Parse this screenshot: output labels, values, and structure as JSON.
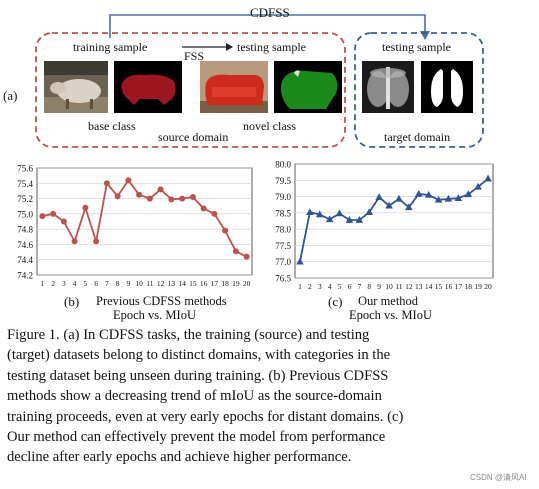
{
  "panel_a": {
    "label": "(a)",
    "cdfss_label": "CDFSS",
    "fss_label": "FSS",
    "training_sample": "training sample",
    "testing_sample_source": "testing sample",
    "testing_sample_target": "testing sample",
    "base_class": "base class",
    "novel_class": "novel class",
    "source_domain": "source domain",
    "target_domain": "target domain",
    "colors": {
      "source_box": "#c0504d",
      "target_box": "#3a5f9c",
      "arrow": "#4a6fb0"
    }
  },
  "chart_data": [
    {
      "type": "line",
      "panel_label": "(b)",
      "caption_line1": "Previous CDFSS methods",
      "caption_line2": "Epoch vs. MIoU",
      "x": [
        1,
        2,
        3,
        4,
        5,
        6,
        7,
        8,
        9,
        10,
        11,
        12,
        13,
        14,
        15,
        16,
        17,
        18,
        19,
        20
      ],
      "y": [
        74.97,
        75.0,
        74.9,
        74.64,
        75.08,
        74.64,
        75.4,
        75.23,
        75.44,
        75.25,
        75.2,
        75.32,
        75.19,
        75.2,
        75.22,
        75.07,
        75.0,
        74.78,
        74.51,
        74.44
      ],
      "yticks": [
        "74.2",
        "74.4",
        "74.6",
        "74.8",
        "75.0",
        "75.2",
        "75.4",
        "75.6"
      ],
      "ylim": [
        74.2,
        75.6
      ],
      "color": "#c0504d",
      "marker": "circle"
    },
    {
      "type": "line",
      "panel_label": "(c)",
      "caption_line1": "Our method",
      "caption_line2": "Epoch vs. MIoU",
      "x": [
        1,
        2,
        3,
        4,
        5,
        6,
        7,
        8,
        9,
        10,
        11,
        12,
        13,
        14,
        15,
        16,
        17,
        18,
        19,
        20
      ],
      "y": [
        77.0,
        78.52,
        78.45,
        78.3,
        78.48,
        78.28,
        78.28,
        78.52,
        78.98,
        78.72,
        78.93,
        78.67,
        79.08,
        79.05,
        78.9,
        78.93,
        78.95,
        79.07,
        79.3,
        79.55
      ],
      "yticks": [
        "76.5",
        "77.0",
        "77.5",
        "78.0",
        "78.5",
        "79.0",
        "79.5",
        "80.0"
      ],
      "ylim": [
        76.5,
        80.0
      ],
      "color": "#2e5597",
      "marker": "triangle"
    }
  ],
  "caption": {
    "lines": [
      "Figure 1.  (a) In CDFSS tasks, the training (source) and testing",
      "(target) datasets belong to distinct domains, with categories in the",
      "testing dataset being unseen during training. (b) Previous CDFSS",
      "methods show a decreasing trend of mIoU as the source-domain",
      "training proceeds, even at very early epochs for distant domains. (c)",
      "Our method can effectively prevent the model from performance",
      "decline after early epochs and achieve higher performance."
    ]
  },
  "watermark": "CSDN @清风AI"
}
